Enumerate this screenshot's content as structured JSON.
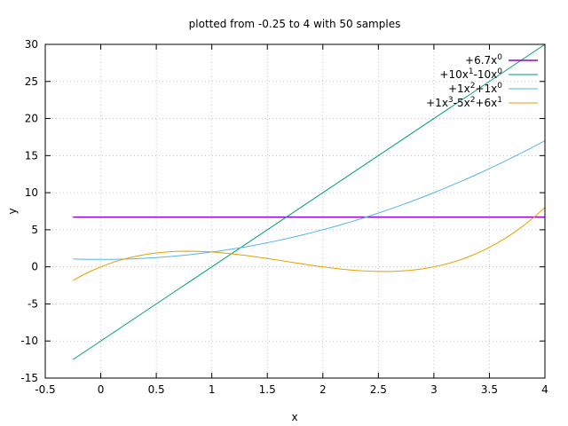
{
  "chart_data": {
    "type": "line",
    "title": "plotted from -0.25 to 4 with 50 samples",
    "xlabel": "x",
    "ylabel": "y",
    "xlim": [
      -0.5,
      4
    ],
    "ylim": [
      -15,
      30
    ],
    "xticks": [
      "-0.5",
      "0",
      "0.5",
      "1",
      "1.5",
      "2",
      "2.5",
      "3",
      "3.5",
      "4"
    ],
    "yticks": [
      "-15",
      "-10",
      "-5",
      "0",
      "5",
      "10",
      "15",
      "20",
      "25",
      "30"
    ],
    "grid": true,
    "legend_position": "top-right",
    "x_range": [
      -0.25,
      4
    ],
    "samples": 50,
    "series": [
      {
        "label_parts": [
          [
            "+6.7x",
            ""
          ],
          [
            "0",
            "sup"
          ]
        ],
        "color": "#9400d3",
        "coefficients": [
          6.7
        ]
      },
      {
        "label_parts": [
          [
            "+10x",
            ""
          ],
          [
            "1",
            "sup"
          ],
          [
            "-10x",
            ""
          ],
          [
            "0",
            "sup"
          ]
        ],
        "color": "#009e73",
        "coefficients": [
          -10,
          10
        ]
      },
      {
        "label_parts": [
          [
            "+1x",
            ""
          ],
          [
            "2",
            "sup"
          ],
          [
            "+1x",
            ""
          ],
          [
            "0",
            "sup"
          ]
        ],
        "color": "#56b4e9",
        "coefficients": [
          1,
          0,
          1
        ]
      },
      {
        "label_parts": [
          [
            "+1x",
            ""
          ],
          [
            "3",
            "sup"
          ],
          [
            "-5x",
            ""
          ],
          [
            "2",
            "sup"
          ],
          [
            "+6x",
            ""
          ],
          [
            "1",
            "sup"
          ]
        ],
        "color": "#e69f00",
        "coefficients": [
          0,
          6,
          -5,
          1
        ]
      }
    ]
  }
}
